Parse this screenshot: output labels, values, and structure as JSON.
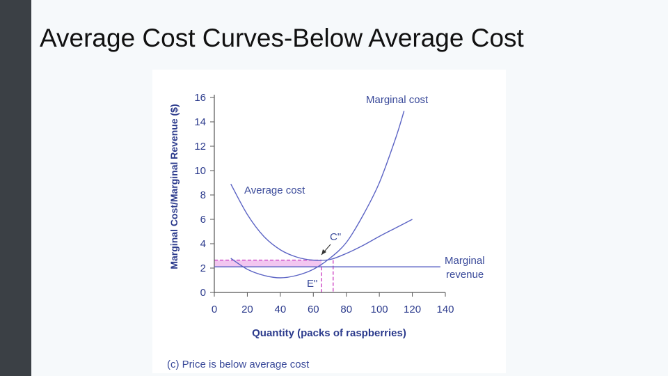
{
  "slide": {
    "title": "Average Cost Curves-Below Average Cost"
  },
  "colors": {
    "curve": "#5b63c4",
    "axis_text": "#2b3a8c",
    "highlight_fill": "#f2c6f0",
    "highlight_line": "#d050c8"
  },
  "chart_data": {
    "type": "line",
    "title": "",
    "caption": "(c) Price is below average cost",
    "xlabel": "Quantity (packs of raspberries)",
    "ylabel": "Marginal Cost/Marginal Revenue ($)",
    "xlim": [
      0,
      140
    ],
    "ylim": [
      0,
      16
    ],
    "xticks": [
      0,
      20,
      40,
      60,
      80,
      100,
      120,
      140
    ],
    "yticks": [
      0,
      2,
      4,
      6,
      8,
      10,
      12,
      14,
      16
    ],
    "grid": false,
    "series": [
      {
        "name": "Marginal cost",
        "x": [
          10,
          20,
          30,
          40,
          50,
          60,
          70,
          80,
          90,
          100,
          110,
          115
        ],
        "y": [
          2.8,
          1.9,
          1.4,
          1.2,
          1.4,
          1.9,
          2.8,
          4.1,
          6.3,
          9.0,
          12.7,
          14.9
        ]
      },
      {
        "name": "Average cost",
        "x": [
          10,
          20,
          30,
          40,
          50,
          60,
          70,
          80,
          90,
          100,
          110,
          120
        ],
        "y": [
          8.9,
          6.4,
          4.6,
          3.5,
          2.9,
          2.65,
          2.7,
          3.2,
          3.85,
          4.6,
          5.3,
          6.0
        ]
      },
      {
        "name": "Marginal revenue",
        "x": [
          0,
          137
        ],
        "y": [
          2.1,
          2.1
        ]
      }
    ],
    "annotations": [
      {
        "label": "C\"",
        "x": 72,
        "y": 2.65
      },
      {
        "label": "E\"",
        "x": 65,
        "y": 2.1
      }
    ],
    "highlight": {
      "x": [
        0,
        65
      ],
      "y": [
        2.1,
        2.65
      ]
    },
    "curve_labels": {
      "marginal_cost": "Marginal cost",
      "average_cost": "Average cost",
      "marginal_revenue_line1": "Marginal",
      "marginal_revenue_line2": "revenue"
    }
  }
}
